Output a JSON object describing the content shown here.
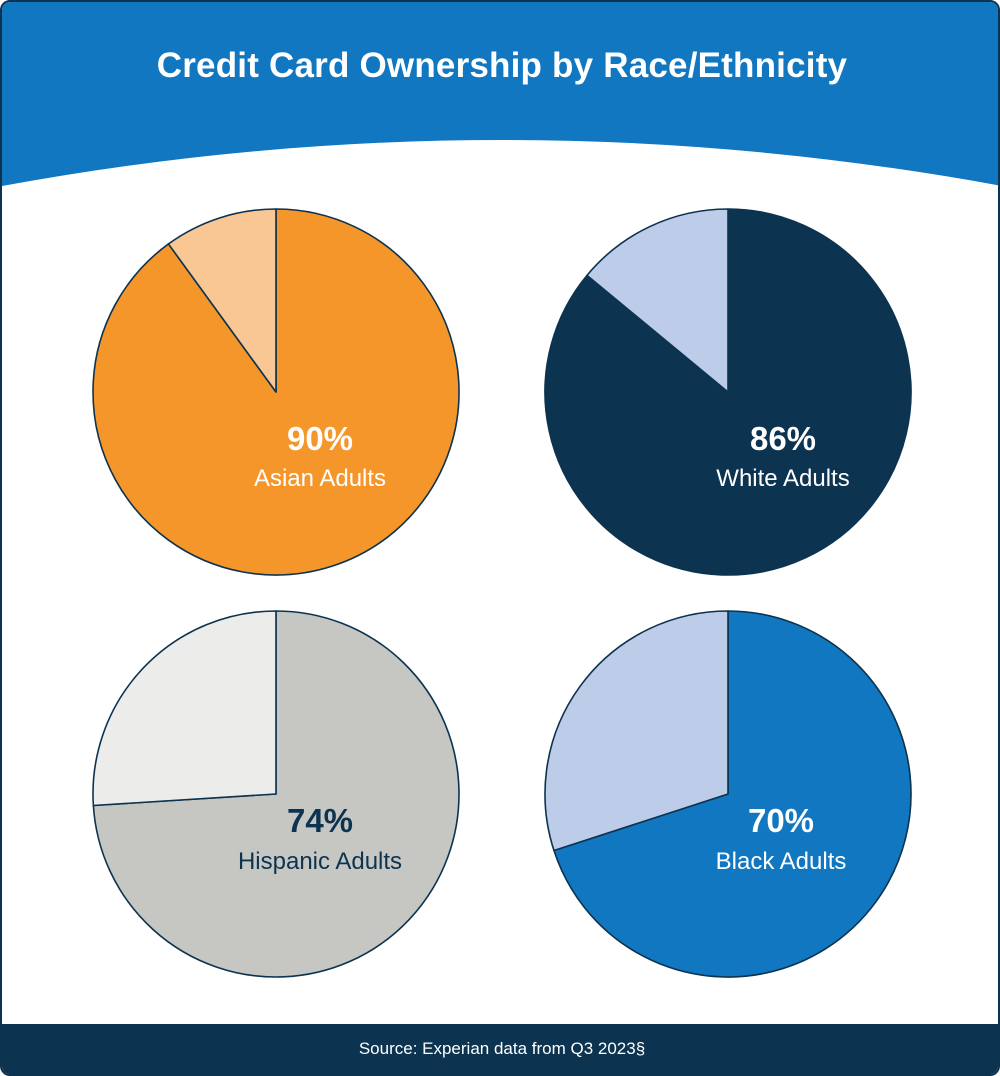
{
  "title": "Credit Card Ownership by Race/Ethnicity",
  "source": "Source: Experian data from Q3 2023§",
  "colors": {
    "header": "#1077c0",
    "navy": "#0c3350",
    "background": "#ffffff"
  },
  "chart_data": [
    {
      "type": "pie",
      "value_label": "90%",
      "category": "Asian Adults",
      "slices": [
        {
          "name": "owns",
          "value": 90,
          "color": "#f5962a"
        },
        {
          "name": "rest",
          "value": 10,
          "color": "#f8c794"
        }
      ],
      "label_color": "#ffffff"
    },
    {
      "type": "pie",
      "value_label": "86%",
      "category": "White Adults",
      "slices": [
        {
          "name": "owns",
          "value": 86,
          "color": "#0c3350"
        },
        {
          "name": "rest",
          "value": 14,
          "color": "#bccce9"
        }
      ],
      "label_color": "#ffffff"
    },
    {
      "type": "pie",
      "value_label": "74%",
      "category": "Hispanic Adults",
      "slices": [
        {
          "name": "owns",
          "value": 74,
          "color": "#c6c7c2"
        },
        {
          "name": "rest",
          "value": 26,
          "color": "#ecedeb"
        }
      ],
      "label_color": "#0c3350"
    },
    {
      "type": "pie",
      "value_label": "70%",
      "category": "Black Adults",
      "slices": [
        {
          "name": "owns",
          "value": 70,
          "color": "#1077c0"
        },
        {
          "name": "rest",
          "value": 30,
          "color": "#bccce9"
        }
      ],
      "label_color": "#ffffff"
    }
  ]
}
